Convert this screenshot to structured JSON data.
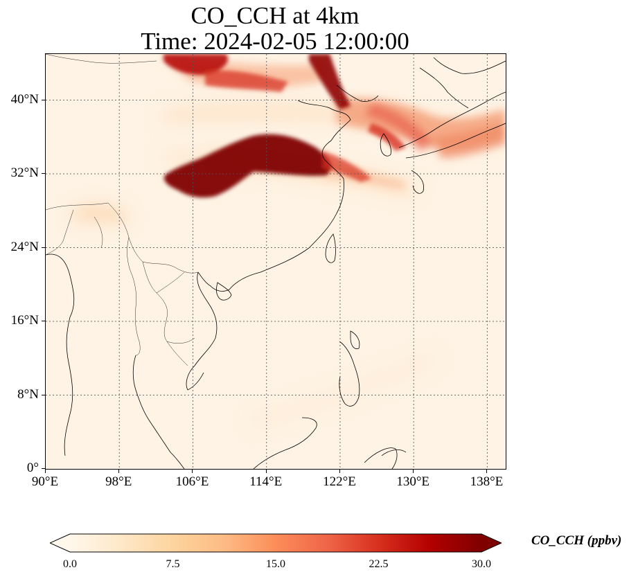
{
  "title": {
    "line1": "CO_CCH at 4km",
    "line2": "Time: 2024-02-05 12:00:00"
  },
  "map": {
    "lon_range": [
      90,
      140
    ],
    "lat_range": [
      0,
      45
    ],
    "lat_ticks": [
      {
        "value": 0,
        "label": "0°"
      },
      {
        "value": 8,
        "label": "8°N"
      },
      {
        "value": 16,
        "label": "16°N"
      },
      {
        "value": 24,
        "label": "24°N"
      },
      {
        "value": 32,
        "label": "32°N"
      },
      {
        "value": 40,
        "label": "40°N"
      }
    ],
    "lon_ticks": [
      {
        "value": 90,
        "label": "90°E"
      },
      {
        "value": 98,
        "label": "98°E"
      },
      {
        "value": 106,
        "label": "106°E"
      },
      {
        "value": 114,
        "label": "114°E"
      },
      {
        "value": 122,
        "label": "122°E"
      },
      {
        "value": 130,
        "label": "130°E"
      },
      {
        "value": 138,
        "label": "138°E"
      }
    ],
    "gridlines": true,
    "gridline_style": "dotted",
    "background_color": "#fef3e4",
    "colormap": "OrRd"
  },
  "colorbar": {
    "label": "CO_CCH (ppbv)",
    "min": 0,
    "max": 30,
    "ticks": [
      "0.0",
      "7.5",
      "15.0",
      "22.5",
      "30.0"
    ],
    "extend": "both",
    "colors": [
      "#fff7ec",
      "#fee8c8",
      "#fdd49e",
      "#fdbb84",
      "#fc8d59",
      "#ef6548",
      "#d7301f",
      "#b30000",
      "#7f0000"
    ]
  }
}
